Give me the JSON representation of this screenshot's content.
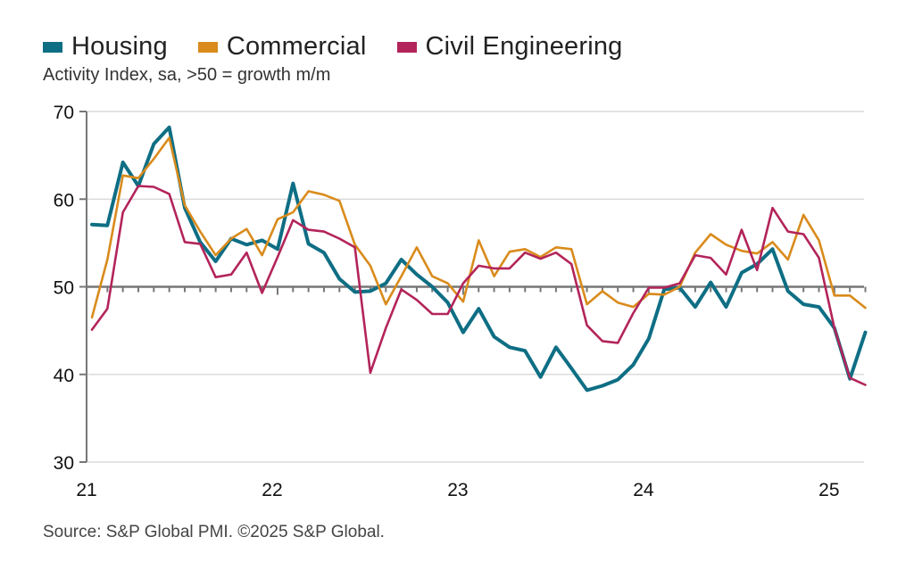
{
  "chart_data": {
    "type": "line",
    "title": "",
    "subtitle": "Activity Index, sa, >50 = growth m/m",
    "xlabel": "",
    "ylabel": "",
    "ylim": [
      30,
      70
    ],
    "yticks": [
      30,
      40,
      50,
      60,
      70
    ],
    "reference_line": 50,
    "x_start": "2021-01",
    "x_end": "2025-03",
    "frequency": "monthly",
    "xtick_labels": [
      {
        "label": "21",
        "index": 0
      },
      {
        "label": "22",
        "index": 12
      },
      {
        "label": "23",
        "index": 24
      },
      {
        "label": "24",
        "index": 36
      },
      {
        "label": "25",
        "index": 48
      }
    ],
    "grid": "horizontal",
    "legend_position": "top-left",
    "series": [
      {
        "name": "Housing",
        "color": "#0e6e84",
        "values": [
          57.1,
          57.0,
          64.2,
          61.5,
          66.3,
          68.2,
          59.0,
          55.1,
          52.9,
          55.5,
          54.8,
          55.3,
          54.3,
          61.8,
          54.9,
          53.9,
          50.9,
          49.4,
          49.5,
          50.4,
          53.1,
          51.4,
          50.0,
          48.2,
          44.8,
          47.5,
          44.3,
          43.1,
          42.7,
          39.7,
          43.1,
          40.7,
          38.2,
          38.7,
          39.4,
          41.1,
          44.1,
          49.7,
          49.9,
          47.7,
          50.5,
          47.7,
          51.6,
          52.6,
          54.3,
          49.5,
          48.0,
          47.7,
          45.3,
          39.5,
          44.8
        ]
      },
      {
        "name": "Commercial",
        "color": "#d98b1c",
        "values": [
          46.5,
          53.1,
          62.7,
          62.4,
          64.6,
          67.0,
          59.3,
          56.3,
          53.6,
          55.5,
          56.6,
          53.6,
          57.7,
          58.5,
          60.9,
          60.5,
          59.8,
          54.8,
          52.4,
          48.0,
          51.2,
          54.5,
          51.2,
          50.4,
          48.3,
          55.3,
          51.2,
          54.0,
          54.3,
          53.4,
          54.5,
          54.3,
          48.0,
          49.5,
          48.2,
          47.7,
          49.2,
          49.1,
          50.0,
          53.9,
          56.0,
          54.8,
          54.1,
          53.8,
          55.1,
          53.1,
          58.2,
          55.3,
          49.0,
          49.0,
          47.6
        ]
      },
      {
        "name": "Civil Engineering",
        "color": "#b3245a",
        "values": [
          45.1,
          47.5,
          58.5,
          61.5,
          61.4,
          60.6,
          55.1,
          54.9,
          51.1,
          51.4,
          53.9,
          49.3,
          53.4,
          57.6,
          56.5,
          56.3,
          55.5,
          54.5,
          40.2,
          45.3,
          49.7,
          48.5,
          46.9,
          46.9,
          50.4,
          52.4,
          52.1,
          52.1,
          53.9,
          53.2,
          53.9,
          52.6,
          45.6,
          43.8,
          43.6,
          47.0,
          49.9,
          49.9,
          50.4,
          53.6,
          53.3,
          51.4,
          56.5,
          51.9,
          59.0,
          56.3,
          56.0,
          53.3,
          45.3,
          39.6,
          38.8
        ]
      }
    ]
  },
  "legend": {
    "items": [
      {
        "label": "Housing",
        "color": "#0e6e84"
      },
      {
        "label": "Commercial",
        "color": "#d98b1c"
      },
      {
        "label": "Civil Engineering",
        "color": "#b3245a"
      }
    ]
  },
  "source": "Source: S&P Global PMI. ©2025 S&P Global."
}
